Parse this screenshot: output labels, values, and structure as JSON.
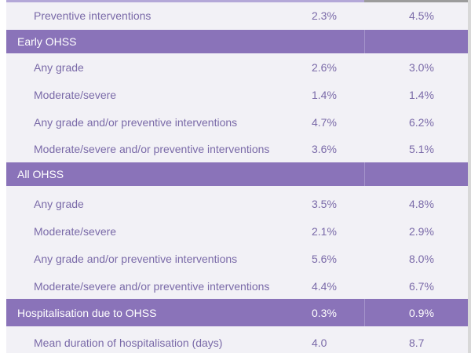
{
  "table": {
    "top_row": {
      "label": "Preventive interventions",
      "v1": "2.3%",
      "v2": "4.5%"
    },
    "sections": [
      {
        "title": "Early OHSS",
        "rows": [
          {
            "label": "Any grade",
            "v1": "2.6%",
            "v2": "3.0%"
          },
          {
            "label": "Moderate/severe",
            "v1": "1.4%",
            "v2": "1.4%"
          },
          {
            "label": "Any grade and/or preventive interventions",
            "v1": "4.7%",
            "v2": "6.2%"
          },
          {
            "label": "Moderate/severe and/or preventive interventions",
            "v1": "3.6%",
            "v2": "5.1%"
          }
        ]
      },
      {
        "title": "All OHSS",
        "rows": [
          {
            "label": "Any grade",
            "v1": "3.5%",
            "v2": "4.8%"
          },
          {
            "label": "Moderate/severe",
            "v1": "2.1%",
            "v2": "2.9%"
          },
          {
            "label": "Any grade and/or preventive interventions",
            "v1": "5.6%",
            "v2": "8.0%"
          },
          {
            "label": "Moderate/severe and/or preventive interventions",
            "v1": "4.4%",
            "v2": "6.7%"
          }
        ]
      }
    ],
    "hospitalisation": {
      "label": "Hospitalisation due to OHSS",
      "v1": "0.3%",
      "v2": "0.9%"
    },
    "mean_duration": {
      "label": "Mean duration of hospitalisation (days)",
      "v1": "4.0",
      "v2": "8.7"
    }
  },
  "colors": {
    "section_bg": "#8a73b9",
    "text": "#7a6aa8",
    "row_bg": "#f2f1f6"
  }
}
